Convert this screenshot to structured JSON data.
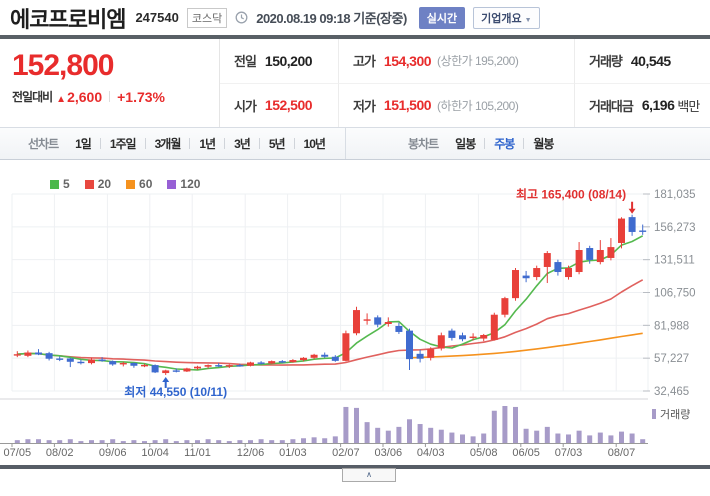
{
  "header": {
    "title": "에코프로비엠",
    "code": "247540",
    "market_badge": "코스닥",
    "datetime": "2020.08.19 09:18",
    "datetime_suffix": "기준(장중)",
    "realtime_button": "실시간",
    "overview_button": "기업개요"
  },
  "price": {
    "current": "152,800",
    "change_label": "전일대비",
    "change_direction": "▲",
    "change_value": "2,600",
    "change_percent": "+1.73%"
  },
  "summary": {
    "prev_close": {
      "label": "전일",
      "value": "150,200"
    },
    "high": {
      "label": "고가",
      "value": "154,300",
      "limit": "(상한가 195,200)"
    },
    "volume": {
      "label": "거래량",
      "value": "40,545"
    },
    "open": {
      "label": "시가",
      "value": "152,500"
    },
    "low": {
      "label": "저가",
      "value": "151,500",
      "limit": "(하한가 105,200)"
    },
    "trade_value": {
      "label": "거래대금",
      "value": "6,196",
      "unit": "백만"
    }
  },
  "chart_tabs": {
    "line_label": "선차트",
    "line_items": [
      "1일",
      "1주일",
      "3개월",
      "1년",
      "3년",
      "5년",
      "10년"
    ],
    "candle_label": "봉차트",
    "candle_items": [
      "일봉",
      "주봉",
      "월봉"
    ],
    "selected": "주봉"
  },
  "chart_data": {
    "type": "candlestick",
    "period": "weekly",
    "title": "에코프로비엠 주봉 차트",
    "y_axis_labels": [
      "181,035",
      "156,273",
      "131,511",
      "106,750",
      "81,988",
      "57,227",
      "32,465"
    ],
    "y_min": 32465,
    "y_max": 181035,
    "x_labels": [
      {
        "index": 0,
        "label": "07/05"
      },
      {
        "index": 4,
        "label": "08/02"
      },
      {
        "index": 9,
        "label": "09/06"
      },
      {
        "index": 13,
        "label": "10/04"
      },
      {
        "index": 17,
        "label": "11/01"
      },
      {
        "index": 22,
        "label": "12/06"
      },
      {
        "index": 26,
        "label": "01/03"
      },
      {
        "index": 31,
        "label": "02/07"
      },
      {
        "index": 35,
        "label": "03/06"
      },
      {
        "index": 39,
        "label": "04/03"
      },
      {
        "index": 44,
        "label": "05/08"
      },
      {
        "index": 48,
        "label": "06/05"
      },
      {
        "index": 52,
        "label": "07/03"
      },
      {
        "index": 57,
        "label": "08/07"
      }
    ],
    "ma_legend": [
      {
        "period": "5",
        "color": "#4cb84c"
      },
      {
        "period": "20",
        "color": "#e8483f"
      },
      {
        "period": "60",
        "color": "#f5921e"
      },
      {
        "period": "120",
        "color": "#9760d5"
      }
    ],
    "annotations": {
      "high": {
        "text": "최고 165,400 (08/14)",
        "price": 165400,
        "index": 58
      },
      "low": {
        "text": "최저 44,550 (10/11)",
        "price": 44550,
        "index": 14
      }
    },
    "volume_legend": "거래량",
    "candles_ohlc": [
      [
        59500,
        62500,
        58000,
        60200
      ],
      [
        59000,
        63000,
        58000,
        61500
      ],
      [
        61500,
        64000,
        59500,
        60000
      ],
      [
        61000,
        62000,
        55500,
        56800
      ],
      [
        57000,
        58500,
        55000,
        56500
      ],
      [
        57000,
        57500,
        50500,
        54500
      ],
      [
        54500,
        56000,
        52500,
        54000
      ],
      [
        53500,
        57500,
        52500,
        56200
      ],
      [
        56200,
        58000,
        54500,
        55600
      ],
      [
        55000,
        55500,
        51500,
        52500
      ],
      [
        52500,
        54500,
        51000,
        53600
      ],
      [
        53600,
        54000,
        50000,
        51500
      ],
      [
        51500,
        53000,
        50500,
        52100
      ],
      [
        52000,
        52500,
        46000,
        46500
      ],
      [
        46000,
        48500,
        44550,
        48000
      ],
      [
        48000,
        49500,
        46500,
        47200
      ],
      [
        47200,
        50000,
        46800,
        49500
      ],
      [
        49500,
        51500,
        48500,
        50800
      ],
      [
        50800,
        52500,
        49500,
        52000
      ],
      [
        52000,
        53500,
        50500,
        51200
      ],
      [
        51200,
        52500,
        49800,
        52000
      ],
      [
        52000,
        53000,
        50800,
        51500
      ],
      [
        51500,
        54500,
        51000,
        54000
      ],
      [
        54000,
        55000,
        52500,
        53200
      ],
      [
        53200,
        55500,
        52800,
        55000
      ],
      [
        55000,
        55800,
        53500,
        54200
      ],
      [
        54200,
        56500,
        53800,
        55800
      ],
      [
        55800,
        58000,
        54800,
        57500
      ],
      [
        57500,
        60500,
        56500,
        59800
      ],
      [
        59800,
        61500,
        57500,
        58300
      ],
      [
        58300,
        59500,
        54500,
        55200
      ],
      [
        55200,
        78000,
        54800,
        76000
      ],
      [
        76000,
        96000,
        74500,
        93500
      ],
      [
        85500,
        91000,
        82500,
        86500
      ],
      [
        88000,
        89500,
        80500,
        82500
      ],
      [
        83000,
        88000,
        81000,
        84500
      ],
      [
        81500,
        84000,
        75500,
        77000
      ],
      [
        78000,
        79500,
        48300,
        56500
      ],
      [
        60500,
        63500,
        54000,
        56800
      ],
      [
        57500,
        65500,
        55500,
        64000
      ],
      [
        64500,
        76500,
        63000,
        74500
      ],
      [
        78000,
        79500,
        70500,
        72500
      ],
      [
        74500,
        76500,
        70000,
        71500
      ],
      [
        72800,
        76000,
        70500,
        73500
      ],
      [
        72000,
        75500,
        70000,
        74700
      ],
      [
        71000,
        91500,
        70500,
        90000
      ],
      [
        90000,
        103500,
        88000,
        102500
      ],
      [
        102500,
        125200,
        100500,
        123700
      ],
      [
        119500,
        123000,
        114500,
        117500
      ],
      [
        118400,
        127000,
        116000,
        125200
      ],
      [
        126000,
        138000,
        113900,
        136500
      ],
      [
        129700,
        131500,
        119500,
        122200
      ],
      [
        118400,
        127000,
        116500,
        125200
      ],
      [
        122200,
        144800,
        120500,
        138800
      ],
      [
        140300,
        142000,
        128500,
        131300
      ],
      [
        129700,
        146300,
        128000,
        138800
      ],
      [
        132800,
        147800,
        131000,
        141000
      ],
      [
        144100,
        163500,
        140000,
        162500
      ],
      [
        163600,
        165400,
        149500,
        152400
      ],
      [
        153500,
        158000,
        150200,
        152800
      ]
    ],
    "volume_relative": [
      3,
      4,
      4,
      3,
      3,
      4,
      2,
      3,
      3,
      4,
      2,
      3,
      2,
      3,
      4,
      2,
      3,
      3,
      4,
      3,
      2,
      3,
      3,
      4,
      3,
      3,
      4,
      5,
      6,
      5,
      7,
      38,
      37,
      22,
      16,
      13,
      17,
      25,
      20,
      16,
      14,
      11,
      9,
      7,
      10,
      34,
      39,
      38,
      15,
      13,
      17,
      10,
      9,
      13,
      8,
      11,
      8,
      12,
      10,
      4
    ],
    "ma60": {
      "start_index": 37,
      "values": [
        57500,
        57800,
        58100,
        58400,
        58800,
        59200,
        59700,
        60200,
        60800,
        61500,
        62300,
        63200,
        64200,
        65200,
        66300,
        67400,
        68600,
        69800,
        71000,
        72300,
        73600,
        74800,
        76000
      ]
    }
  },
  "footer": {
    "collapse_label": "∧"
  },
  "colors": {
    "up_candle": "#e8403a",
    "down_candle": "#3f6bcf",
    "ma5": "#55b94f",
    "ma20": "#e0615e",
    "ma60": "#f5921e",
    "ma120": "#9760d5",
    "volume_bar": "#a79bc8",
    "price_red": "#e82c2c",
    "annotation_high": "#e03030",
    "annotation_low": "#2f64cd",
    "selected_tab_blue": "#2f64cd"
  }
}
